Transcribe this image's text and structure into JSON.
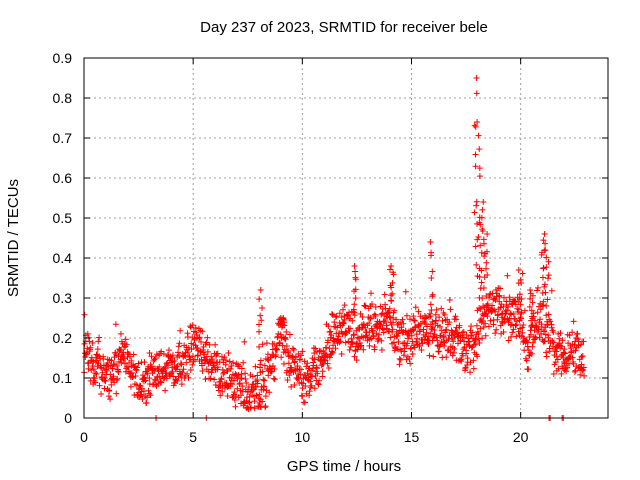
{
  "chart_data": {
    "type": "scatter",
    "title": "Day 237 of 2023, SRMTID for receiver bele",
    "xlabel": "GPS time / hours",
    "ylabel": "SRMTID / TECUs",
    "xlim": [
      0,
      24
    ],
    "ylim": [
      0,
      0.9
    ],
    "x_ticks": [
      "0",
      "5",
      "10",
      "15",
      "20"
    ],
    "x_tick_values": [
      0,
      5,
      10,
      15,
      20
    ],
    "y_ticks": [
      "0",
      "0.1",
      "0.2",
      "0.3",
      "0.4",
      "0.5",
      "0.6",
      "0.7",
      "0.8",
      "0.9"
    ],
    "y_tick_values": [
      0,
      0.1,
      0.2,
      0.3,
      0.4,
      0.5,
      0.6,
      0.7,
      0.8,
      0.9
    ],
    "grid": true,
    "marker": "+",
    "series": [
      {
        "name": "SRMTID",
        "color": "#ff0000",
        "baseline_profile": {
          "x": [
            0,
            0.2,
            0.5,
            1.0,
            1.5,
            1.8,
            2.0,
            2.3,
            2.6,
            3.0,
            3.5,
            4.0,
            4.5,
            5.0,
            5.5,
            6.0,
            6.5,
            7.0,
            7.5,
            8.0,
            8.3,
            8.6,
            9.0,
            9.5,
            10.0,
            10.3,
            10.6,
            11.0,
            11.5,
            12.0,
            12.5,
            13.0,
            13.5,
            14.0,
            14.5,
            15.0,
            15.5,
            16.0,
            16.5,
            17.0,
            17.5,
            17.9,
            18.2,
            18.5,
            19.0,
            19.5,
            20.0,
            20.3,
            20.6,
            21.0,
            21.3,
            21.6,
            22.0,
            22.4,
            22.8
          ],
          "y": [
            0.17,
            0.15,
            0.12,
            0.11,
            0.12,
            0.17,
            0.14,
            0.09,
            0.08,
            0.11,
            0.12,
            0.13,
            0.13,
            0.19,
            0.16,
            0.12,
            0.1,
            0.09,
            0.07,
            0.06,
            0.08,
            0.14,
            0.2,
            0.14,
            0.1,
            0.09,
            0.13,
            0.16,
            0.2,
            0.24,
            0.2,
            0.24,
            0.22,
            0.25,
            0.19,
            0.2,
            0.22,
            0.21,
            0.2,
            0.21,
            0.17,
            0.18,
            0.26,
            0.27,
            0.27,
            0.26,
            0.24,
            0.16,
            0.2,
            0.24,
            0.21,
            0.16,
            0.15,
            0.18,
            0.13
          ]
        },
        "peaks": [
          {
            "x": 8.1,
            "y": 0.32
          },
          {
            "x": 9.1,
            "y": 0.25
          },
          {
            "x": 12.4,
            "y": 0.38
          },
          {
            "x": 14.1,
            "y": 0.38
          },
          {
            "x": 15.9,
            "y": 0.44
          },
          {
            "x": 17.95,
            "y": 0.85
          },
          {
            "x": 18.05,
            "y": 0.74
          },
          {
            "x": 18.2,
            "y": 0.54
          },
          {
            "x": 18.4,
            "y": 0.46
          },
          {
            "x": 20.0,
            "y": 0.37
          },
          {
            "x": 20.5,
            "y": 0.32
          },
          {
            "x": 21.05,
            "y": 0.46
          },
          {
            "x": 21.2,
            "y": 0.42
          }
        ],
        "zero_points_x": [
          3.3,
          5.6,
          21.3,
          21.35,
          21.9,
          21.95
        ],
        "x_range_observed": [
          0,
          22.9
        ]
      }
    ]
  }
}
